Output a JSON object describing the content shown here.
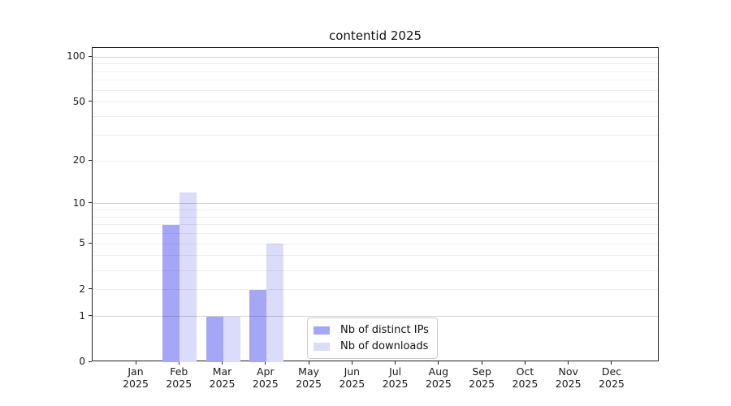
{
  "chart_data": {
    "type": "bar",
    "title": "contentid 2025",
    "categories": [
      "Jan",
      "Feb",
      "Mar",
      "Apr",
      "May",
      "Jun",
      "Jul",
      "Aug",
      "Sep",
      "Oct",
      "Nov",
      "Dec"
    ],
    "year_label": "2025",
    "series": [
      {
        "name": "Nb of distinct IPs",
        "color": "#a6a6f6",
        "values": [
          0,
          7,
          1,
          2,
          0,
          0,
          0,
          0,
          0,
          0,
          0,
          0
        ]
      },
      {
        "name": "Nb of downloads",
        "color": "#dbdbfa",
        "values": [
          0,
          12,
          1,
          5,
          0,
          0,
          0,
          0,
          0,
          0,
          0,
          0
        ]
      }
    ],
    "yscale": "log1p",
    "ylim": [
      0,
      115
    ],
    "ytick_values": [
      0,
      1,
      2,
      5,
      10,
      20,
      50,
      100
    ],
    "grid_major_values": [
      1,
      10,
      100
    ],
    "grid_minor_values": [
      2,
      3,
      4,
      5,
      6,
      7,
      8,
      9,
      20,
      30,
      40,
      50,
      60,
      70,
      80,
      90
    ],
    "grid": true,
    "legend_position": "lower-center",
    "axis_color": "#222222"
  }
}
